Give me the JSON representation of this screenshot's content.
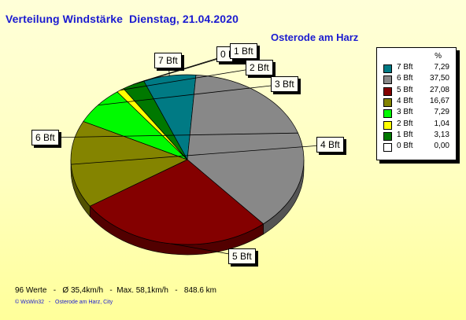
{
  "header": {
    "title": "Verteilung Windstärke  Dienstag, 21.04.2020",
    "station": "Osterode am Harz"
  },
  "legend": {
    "unit_header": "%"
  },
  "chart_data": {
    "type": "pie",
    "title": "Verteilung Windstärke  Dienstag, 21.04.2020",
    "subtitle": "Osterode am Harz",
    "categories": [
      "7 Bft",
      "6 Bft",
      "5 Bft",
      "4 Bft",
      "3 Bft",
      "2 Bft",
      "1 Bft",
      "0 Bft"
    ],
    "values": [
      7.29,
      37.5,
      27.08,
      16.67,
      7.29,
      1.04,
      3.13,
      0.0
    ],
    "value_labels": [
      "7,29",
      "37,50",
      "27,08",
      "16,67",
      "7,29",
      "1,04",
      "3,13",
      "0,00"
    ],
    "colors": [
      "#007a84",
      "#888888",
      "#840000",
      "#848400",
      "#00fa00",
      "#ffff00",
      "#007800",
      "#ffffff"
    ],
    "legend_position": "right",
    "style": "3d-exploded"
  },
  "footer": {
    "stats": "96 Werte   -   Ø 35,4km/h   -  Max. 58,1km/h   -   848.6 km",
    "credit": "© WsWin32   -   Osterode am Harz, City"
  }
}
